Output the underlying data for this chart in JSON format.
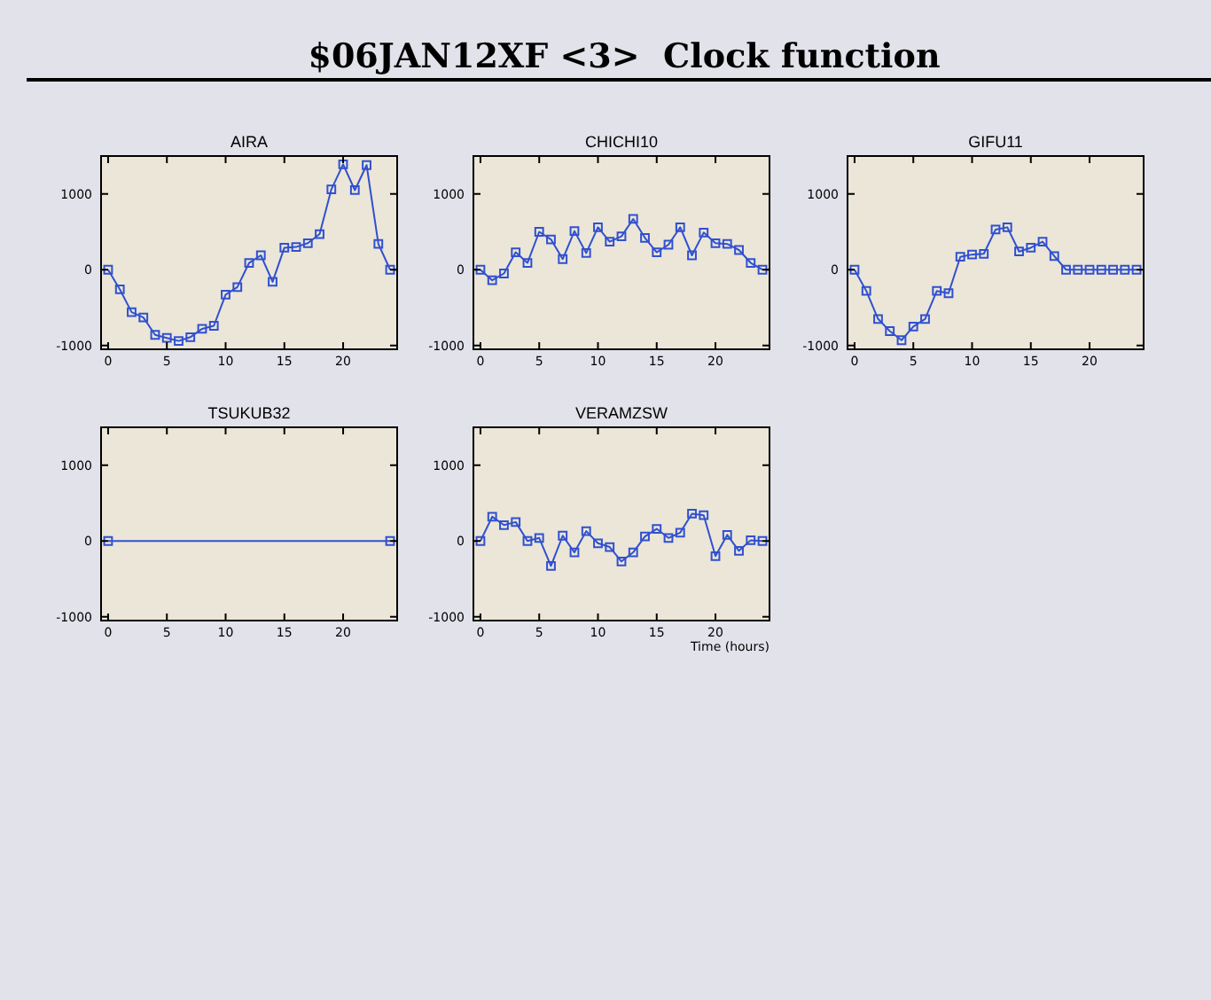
{
  "chart_data": [
    {
      "type": "line",
      "title": "AIRA",
      "annotations": [
        "$06JAN12XF <3>  Clock function"
      ],
      "marker": "square",
      "xlim": [
        -0.6,
        24.6
      ],
      "ylim": [
        -1050,
        1500
      ],
      "xticks": [
        0,
        5,
        10,
        15,
        20
      ],
      "yticks": [
        -1000,
        0,
        1000
      ],
      "x": [
        0,
        1,
        2,
        3,
        4,
        5,
        6,
        7,
        8,
        9,
        10,
        11,
        12,
        13,
        14,
        15,
        16,
        17,
        18,
        19,
        20,
        21,
        22,
        23,
        24
      ],
      "series": [
        {
          "color": "#3050d0",
          "values": [
            0,
            -260,
            -560,
            -630,
            -860,
            -900,
            -940,
            -890,
            -780,
            -740,
            -330,
            -230,
            90,
            190,
            -160,
            290,
            300,
            350,
            470,
            1060,
            1390,
            1050,
            1380,
            340,
            0
          ]
        }
      ]
    },
    {
      "type": "line",
      "title": "CHICHI10",
      "marker": "square",
      "xlim": [
        -0.6,
        24.6
      ],
      "ylim": [
        -1050,
        1500
      ],
      "xticks": [
        0,
        5,
        10,
        15,
        20
      ],
      "yticks": [
        -1000,
        0,
        1000
      ],
      "x": [
        0,
        1,
        2,
        3,
        4,
        5,
        6,
        7,
        8,
        9,
        10,
        11,
        12,
        13,
        14,
        15,
        16,
        17,
        18,
        19,
        20,
        21,
        22,
        23,
        24
      ],
      "series": [
        {
          "color": "#3050d0",
          "values": [
            0,
            -140,
            -50,
            230,
            90,
            500,
            400,
            140,
            510,
            220,
            560,
            370,
            440,
            670,
            420,
            230,
            330,
            560,
            190,
            490,
            350,
            340,
            260,
            90,
            0
          ]
        }
      ]
    },
    {
      "type": "line",
      "title": "GIFU11",
      "marker": "square",
      "xlim": [
        -0.6,
        24.6
      ],
      "ylim": [
        -1050,
        1500
      ],
      "xticks": [
        0,
        5,
        10,
        15,
        20
      ],
      "yticks": [
        -1000,
        0,
        1000
      ],
      "x": [
        0,
        1,
        2,
        3,
        4,
        5,
        6,
        7,
        8,
        9,
        10,
        11,
        12,
        13,
        14,
        15,
        16,
        17,
        18,
        19,
        20,
        21,
        22,
        23,
        24
      ],
      "series": [
        {
          "color": "#3050d0",
          "values": [
            0,
            -280,
            -650,
            -810,
            -930,
            -750,
            -650,
            -280,
            -310,
            170,
            200,
            210,
            530,
            560,
            240,
            290,
            370,
            180,
            0,
            0,
            0,
            0,
            0,
            0,
            0
          ]
        }
      ]
    },
    {
      "type": "line",
      "title": "TSUKUB32",
      "marker": "square",
      "xlim": [
        -0.6,
        24.6
      ],
      "ylim": [
        -1050,
        1500
      ],
      "xticks": [
        0,
        5,
        10,
        15,
        20
      ],
      "yticks": [
        -1000,
        0,
        1000
      ],
      "x": [
        0,
        24
      ],
      "series": [
        {
          "color": "#3050d0",
          "values": [
            0,
            0
          ]
        }
      ]
    },
    {
      "type": "line",
      "title": "VERAMZSW",
      "xlabel": "Time (hours)",
      "marker": "square",
      "xlim": [
        -0.6,
        24.6
      ],
      "ylim": [
        -1050,
        1500
      ],
      "xticks": [
        0,
        5,
        10,
        15,
        20
      ],
      "yticks": [
        -1000,
        0,
        1000
      ],
      "x": [
        0,
        1,
        2,
        3,
        4,
        5,
        6,
        7,
        8,
        9,
        10,
        11,
        12,
        13,
        14,
        15,
        16,
        17,
        18,
        19,
        20,
        21,
        22,
        23,
        24
      ],
      "series": [
        {
          "color": "#3050d0",
          "values": [
            0,
            320,
            210,
            250,
            0,
            40,
            -330,
            70,
            -150,
            130,
            -30,
            -80,
            -270,
            -150,
            60,
            160,
            40,
            110,
            360,
            340,
            -200,
            80,
            -130,
            10,
            0
          ]
        }
      ]
    }
  ]
}
